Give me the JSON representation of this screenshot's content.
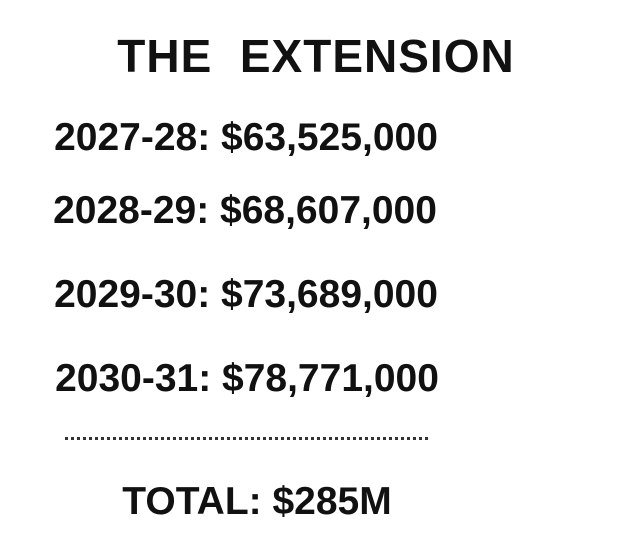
{
  "header": {
    "title": "THE  EXTENSION"
  },
  "rows": [
    {
      "text": "2027-28: $63,525,000"
    },
    {
      "text": "2028-29: $68,607,000"
    },
    {
      "text": "2029-30: $73,689,000"
    },
    {
      "text": "2030-31: $78,771,000"
    }
  ],
  "total": {
    "text": "TOTAL: $285M"
  }
}
